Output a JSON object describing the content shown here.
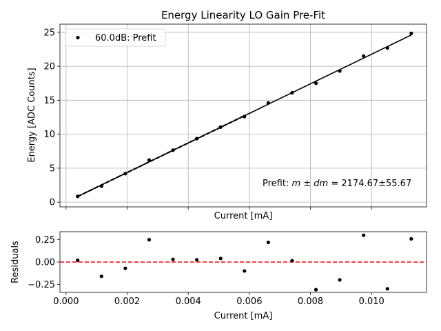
{
  "chart_data": [
    {
      "type": "scatter",
      "title": "Energy Linearity LO Gain Pre-Fit",
      "xlabel": "Current [mA]",
      "ylabel": "Energy [ADC Counts]",
      "xlim": [
        -0.0002,
        0.0118
      ],
      "ylim": [
        -0.7,
        26.2
      ],
      "grid": true,
      "legend": {
        "position": "upper-left",
        "entries": [
          "60.0dB: Prefit"
        ]
      },
      "annotation": {
        "prefix": "Prefit: ",
        "math": "m ± dm",
        "value": " = 2174.67±55.67"
      },
      "x_ticks": [],
      "y_ticks": [
        0,
        5,
        10,
        15,
        20,
        25
      ],
      "x_tick_positions": [
        0.0,
        0.002,
        0.004,
        0.006,
        0.008,
        0.01
      ],
      "series": [
        {
          "name": "60.0dB: Prefit",
          "x": [
            0.00038,
            0.00116,
            0.00194,
            0.00272,
            0.0035,
            0.00428,
            0.00506,
            0.00584,
            0.00662,
            0.0074,
            0.00818,
            0.00896,
            0.00974,
            0.01052,
            0.0113
          ],
          "y": [
            0.85,
            2.35,
            4.2,
            6.2,
            7.65,
            9.35,
            11.05,
            12.6,
            14.6,
            16.1,
            17.5,
            19.3,
            21.5,
            22.7,
            24.85
          ]
        }
      ],
      "fit_line": {
        "x": [
          0.00038,
          0.0113
        ],
        "y": [
          0.83,
          24.6
        ]
      },
      "fit_line_dashed_to": 0.00584
    },
    {
      "type": "scatter",
      "xlabel": "Current [mA]",
      "ylabel": "Residuals",
      "xlim": [
        -0.0002,
        0.0118
      ],
      "ylim": [
        -0.34,
        0.34
      ],
      "x_ticks": [
        "0.000",
        "0.002",
        "0.004",
        "0.006",
        "0.008",
        "0.010"
      ],
      "x_tick_values": [
        0.0,
        0.002,
        0.004,
        0.006,
        0.008,
        0.01
      ],
      "y_ticks": [
        "−0.25",
        "0.00",
        "0.25"
      ],
      "y_tick_values": [
        -0.25,
        0.0,
        0.25
      ],
      "zero_line_color": "#ff0000",
      "series": [
        {
          "x": [
            0.00038,
            0.00116,
            0.00194,
            0.00272,
            0.0035,
            0.00428,
            0.00506,
            0.00584,
            0.00662,
            0.0074,
            0.00818,
            0.00896,
            0.00974,
            0.01052,
            0.0113
          ],
          "y": [
            0.02,
            -0.16,
            -0.07,
            0.25,
            0.03,
            0.025,
            0.04,
            -0.1,
            0.22,
            0.015,
            -0.31,
            -0.2,
            0.3,
            -0.3,
            0.26
          ]
        }
      ]
    }
  ]
}
